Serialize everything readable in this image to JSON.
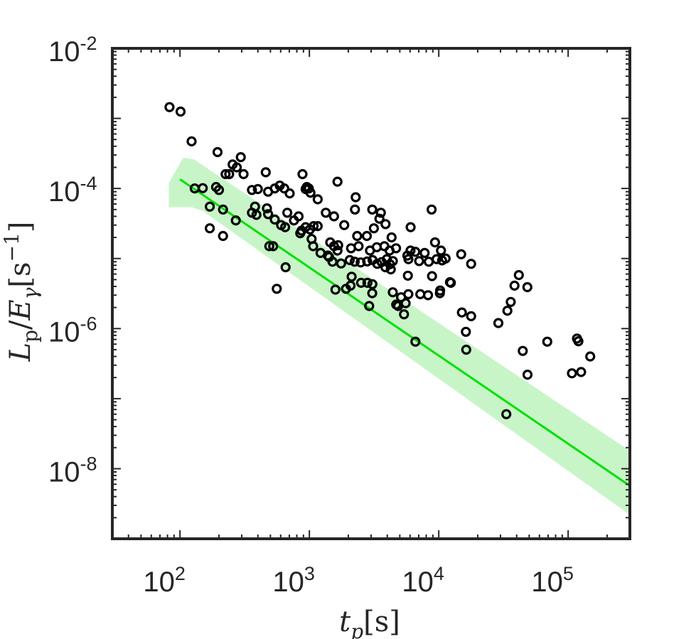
{
  "chart_data": {
    "type": "scatter",
    "title": "",
    "xlabel": "t_p[s]",
    "ylabel": "L_p/E_γ[s^-1]",
    "x_scale": "log",
    "y_scale": "log",
    "xlim": [
      30,
      300000
    ],
    "ylim": [
      1e-09,
      0.01
    ],
    "x_ticks": [
      {
        "value": 100,
        "base": "10",
        "exp": "2"
      },
      {
        "value": 1000,
        "base": "10",
        "exp": "3"
      },
      {
        "value": 10000,
        "base": "10",
        "exp": "4"
      },
      {
        "value": 100000,
        "base": "10",
        "exp": "5"
      }
    ],
    "y_ticks": [
      {
        "value": 1e-08,
        "base": "10",
        "exp": "-8"
      },
      {
        "value": 1e-06,
        "base": "10",
        "exp": "-6"
      },
      {
        "value": 0.0001,
        "base": "10",
        "exp": "-4"
      },
      {
        "value": 0.01,
        "base": "10",
        "exp": "-2"
      }
    ],
    "grid": false,
    "series": [
      {
        "kind": "scatter",
        "marker": "open-circle",
        "color": "#000000",
        "points": [
          [
            83,
            0.00145
          ],
          [
            101,
            0.00125
          ],
          [
            123,
            0.00047
          ],
          [
            195,
            0.00033
          ],
          [
            295,
            0.00028
          ],
          [
            255,
            0.00022
          ],
          [
            275,
            0.0002
          ],
          [
            225,
            0.00016
          ],
          [
            240,
            0.00016
          ],
          [
            310,
            0.00016
          ],
          [
            460,
            0.00017
          ],
          [
            885,
            0.00016
          ],
          [
            1650,
            0.000125
          ],
          [
            955,
            0.000105
          ],
          [
            935,
            9.8e-05
          ],
          [
            990,
            0.0001
          ],
          [
            590,
            0.00011
          ],
          [
            640,
            0.0001
          ],
          [
            540,
            0.0001
          ],
          [
            400,
            9.8e-05
          ],
          [
            360,
            9.5e-05
          ],
          [
            480,
            9e-05
          ],
          [
            705,
            8.5e-05
          ],
          [
            1020,
            8.7e-05
          ],
          [
            1160,
            7e-05
          ],
          [
            2280,
            7.5e-05
          ],
          [
            2250,
            5e-05
          ],
          [
            3060,
            5e-05
          ],
          [
            3570,
            4.5e-05
          ],
          [
            8800,
            5e-05
          ],
          [
            130,
            0.0001
          ],
          [
            150,
            0.000101
          ],
          [
            190,
            0.000105
          ],
          [
            200,
            9.5e-05
          ],
          [
            170,
            5.5e-05
          ],
          [
            215,
            5e-05
          ],
          [
            380,
            5.5e-05
          ],
          [
            470,
            5.2e-05
          ],
          [
            360,
            4.5e-05
          ],
          [
            390,
            4.2e-05
          ],
          [
            480,
            4.3e-05
          ],
          [
            675,
            4.5e-05
          ],
          [
            825,
            4e-05
          ],
          [
            760,
            3.5e-05
          ],
          [
            1550,
            4e-05
          ],
          [
            1340,
            4.5e-05
          ],
          [
            270,
            3.5e-05
          ],
          [
            540,
            3.6e-05
          ],
          [
            605,
            3e-05
          ],
          [
            650,
            2.8e-05
          ],
          [
            870,
            2.5e-05
          ],
          [
            935,
            2.8e-05
          ],
          [
            850,
            2.3e-05
          ],
          [
            1010,
            2.6e-05
          ],
          [
            1080,
            2.9e-05
          ],
          [
            1160,
            2.9e-05
          ],
          [
            1860,
            3e-05
          ],
          [
            2340,
            2.1e-05
          ],
          [
            2780,
            2.1e-05
          ],
          [
            3150,
            2.7e-05
          ],
          [
            3480,
            3.7e-05
          ],
          [
            3880,
            3.1e-05
          ],
          [
            4320,
            2e-05
          ],
          [
            6060,
            2.8e-05
          ],
          [
            170,
            2.7e-05
          ],
          [
            215,
            2.1e-05
          ],
          [
            1040,
            1.9e-05
          ],
          [
            1070,
            1.5e-05
          ],
          [
            1450,
            1.7e-05
          ],
          [
            1550,
            1.5e-05
          ],
          [
            1670,
            1.55e-05
          ],
          [
            1650,
            1.3e-05
          ],
          [
            2100,
            1.4e-05
          ],
          [
            2400,
            1.5e-05
          ],
          [
            2940,
            1.3e-05
          ],
          [
            3320,
            1.45e-05
          ],
          [
            3800,
            1.5e-05
          ],
          [
            4170,
            1.3e-05
          ],
          [
            4680,
            1.4e-05
          ],
          [
            5720,
            1.1e-05
          ],
          [
            6050,
            1.3e-05
          ],
          [
            6590,
            1.25e-05
          ],
          [
            7780,
            1.2e-05
          ],
          [
            9350,
            1.7e-05
          ],
          [
            10400,
            1.3e-05
          ],
          [
            14900,
            1.15e-05
          ],
          [
            11300,
            1e-05
          ],
          [
            490,
            1.5e-05
          ],
          [
            1220,
            1.2e-05
          ],
          [
            1390,
            1.1e-05
          ],
          [
            1420,
            1.05e-05
          ],
          [
            1510,
            9e-06
          ],
          [
            1760,
            8.5e-06
          ],
          [
            2050,
            9.5e-06
          ],
          [
            2240,
            9e-06
          ],
          [
            2490,
            8.8e-06
          ],
          [
            2800,
            9.1e-06
          ],
          [
            3080,
            9.5e-06
          ],
          [
            3350,
            8.4e-06
          ],
          [
            3620,
            8.9e-06
          ],
          [
            3970,
            9.8e-06
          ],
          [
            4190,
            8.3e-06
          ],
          [
            4420,
            9.2e-06
          ],
          [
            5830,
            9.8e-06
          ],
          [
            7060,
            9.2e-06
          ],
          [
            8370,
            9e-06
          ],
          [
            9620,
            9.8e-06
          ],
          [
            10600,
            9.4e-06
          ],
          [
            17800,
            8.4e-06
          ],
          [
            3870,
            7.5e-06
          ],
          [
            4260,
            7e-06
          ],
          [
            2120,
            5.5e-06
          ],
          [
            2510,
            4.5e-06
          ],
          [
            2810,
            4.5e-06
          ],
          [
            3070,
            4.3e-06
          ],
          [
            8870,
            5.6e-06
          ],
          [
            5770,
            5.7e-06
          ],
          [
            12200,
            4.6e-06
          ],
          [
            12400,
            4.5e-06
          ],
          [
            41600,
            5.8e-06
          ],
          [
            38500,
            4.1e-06
          ],
          [
            48400,
            3.9e-06
          ],
          [
            1590,
            3.6e-06
          ],
          [
            1920,
            3.7e-06
          ],
          [
            2080,
            4.1e-06
          ],
          [
            3060,
            3.2e-06
          ],
          [
            4410,
            3.3e-06
          ],
          [
            5820,
            3.1e-06
          ],
          [
            7200,
            3.1e-06
          ],
          [
            8270,
            3e-06
          ],
          [
            10250,
            3.5e-06
          ],
          [
            10200,
            3.2e-06
          ],
          [
            5110,
            2.8e-06
          ],
          [
            5550,
            2.3e-06
          ],
          [
            4690,
            2.2e-06
          ],
          [
            4850,
            2.1e-06
          ],
          [
            5390,
            1.6e-06
          ],
          [
            2900,
            2.1e-06
          ],
          [
            15100,
            1.7e-06
          ],
          [
            17800,
            1.5e-06
          ],
          [
            33900,
            1.8e-06
          ],
          [
            36000,
            2.4e-06
          ],
          [
            28900,
            1.2e-06
          ],
          [
            16200,
            9e-07
          ],
          [
            16300,
            5e-07
          ],
          [
            44600,
            4.8e-07
          ],
          [
            48500,
            2.2e-07
          ],
          [
            69000,
            6.5e-07
          ],
          [
            117000,
            7.2e-07
          ],
          [
            120000,
            6.6e-07
          ],
          [
            107000,
            2.3e-07
          ],
          [
            126000,
            2.4e-07
          ],
          [
            148000,
            4e-07
          ],
          [
            6600,
            6.5e-07
          ],
          [
            33300,
            6e-08
          ],
          [
            560,
            3.7e-06
          ],
          [
            655,
            7.5e-06
          ],
          [
            525,
            1.5e-05
          ]
        ]
      },
      {
        "kind": "line",
        "color": "#00e000",
        "from": [
          100,
          0.000135
        ],
        "to": [
          300000,
          5.7e-09
        ]
      },
      {
        "kind": "band",
        "color": "#c8f5c8",
        "upper": [
          [
            82,
            0.00012
          ],
          [
            106,
            0.000275
          ],
          [
            128,
            0.00026
          ],
          [
            300000,
            1.8e-08
          ]
        ],
        "lower": [
          [
            300000,
            2.2e-09
          ],
          [
            150,
            4.8e-05
          ],
          [
            123,
            5.4e-05
          ],
          [
            82,
            5.4e-05
          ]
        ]
      }
    ]
  }
}
